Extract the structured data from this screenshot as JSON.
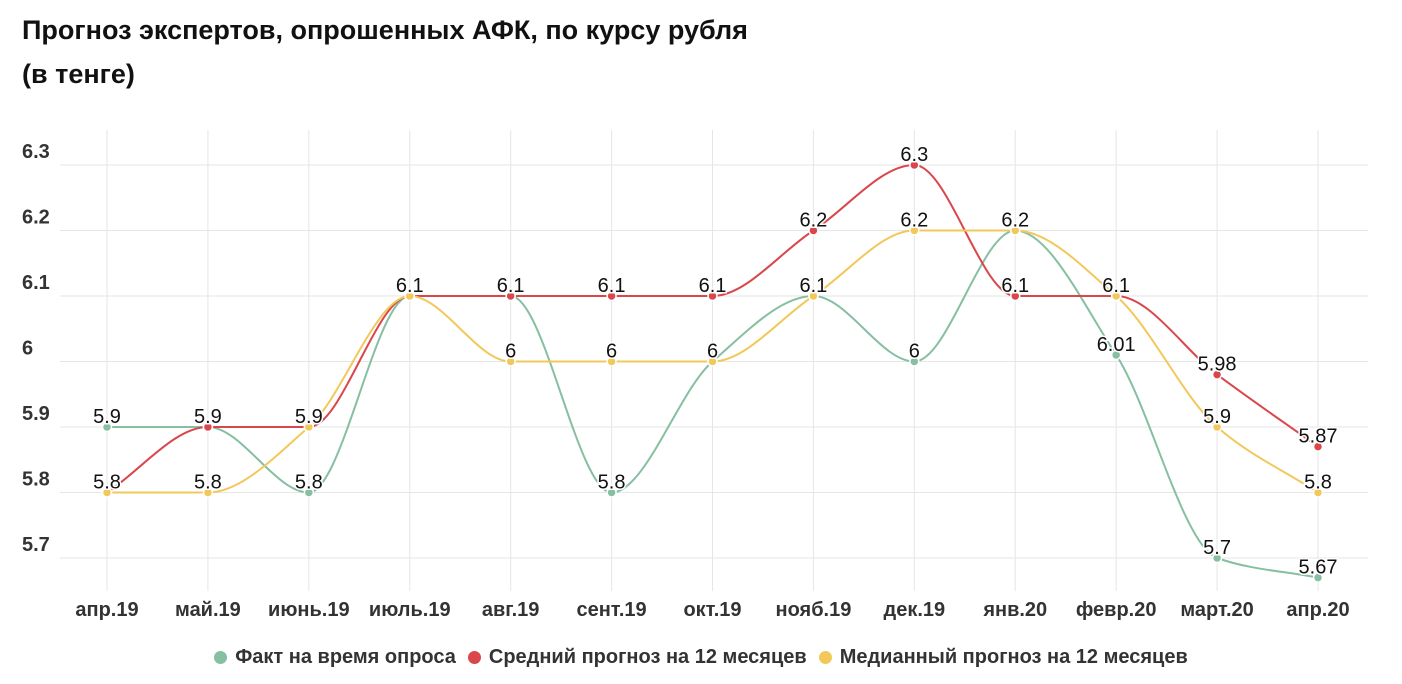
{
  "title_line1": "Прогноз экспертов, опрошенных АФК, по курсу рубля",
  "title_line2": "(в тенге)",
  "colors": {
    "fact": "#86bfa1",
    "mean": "#d9474d",
    "median": "#f2c85b",
    "grid": "#e6e6e6",
    "text": "#111111"
  },
  "chart_data": {
    "type": "line",
    "title": "Прогноз экспертов, опрошенных АФК, по курсу рубля (в тенге)",
    "categories": [
      "апр.19",
      "май.19",
      "июнь.19",
      "июль.19",
      "авг.19",
      "сент.19",
      "окт.19",
      "нояб.19",
      "дек.19",
      "янв.20",
      "февр.20",
      "март.20",
      "апр.20"
    ],
    "y_ticks": [
      {
        "value": 5.7,
        "label": "5.7"
      },
      {
        "value": 5.8,
        "label": "5.8"
      },
      {
        "value": 5.9,
        "label": "5.9"
      },
      {
        "value": 6.0,
        "label": "6"
      },
      {
        "value": 6.1,
        "label": "6.1"
      },
      {
        "value": 6.2,
        "label": "6.2"
      },
      {
        "value": 6.3,
        "label": "6.3"
      }
    ],
    "ylim": [
      5.64,
      6.35
    ],
    "grid": true,
    "legend_position": "bottom",
    "series": [
      {
        "name": "Факт на время опроса",
        "color_key": "fact",
        "values": [
          5.9,
          5.9,
          5.8,
          6.1,
          6.1,
          5.8,
          6.0,
          6.1,
          6.0,
          6.2,
          6.01,
          5.7,
          5.67
        ],
        "labels": [
          "5.9",
          "",
          "5.8",
          "",
          "",
          "5.8",
          "",
          "",
          "6",
          "",
          "6.01",
          "5.7",
          "5.67"
        ]
      },
      {
        "name": "Средний прогноз на 12 месяцев",
        "color_key": "mean",
        "values": [
          5.8,
          5.9,
          5.9,
          6.1,
          6.1,
          6.1,
          6.1,
          6.2,
          6.3,
          6.1,
          6.1,
          5.98,
          5.87
        ],
        "labels": [
          "",
          "5.9",
          "5.9",
          "6.1",
          "6.1",
          "6.1",
          "6.1",
          "6.2",
          "6.3",
          "6.1",
          "6.1",
          "5.98",
          "5.87"
        ]
      },
      {
        "name": "Медианный прогноз на 12 месяцев",
        "color_key": "median",
        "values": [
          5.8,
          5.8,
          5.9,
          6.1,
          6.0,
          6.0,
          6.0,
          6.1,
          6.2,
          6.2,
          6.1,
          5.9,
          5.8
        ],
        "labels": [
          "5.8",
          "5.8",
          "",
          "",
          "6",
          "6",
          "6",
          "6.1",
          "6.2",
          "6.2",
          "",
          "5.9",
          "5.8"
        ]
      }
    ]
  }
}
